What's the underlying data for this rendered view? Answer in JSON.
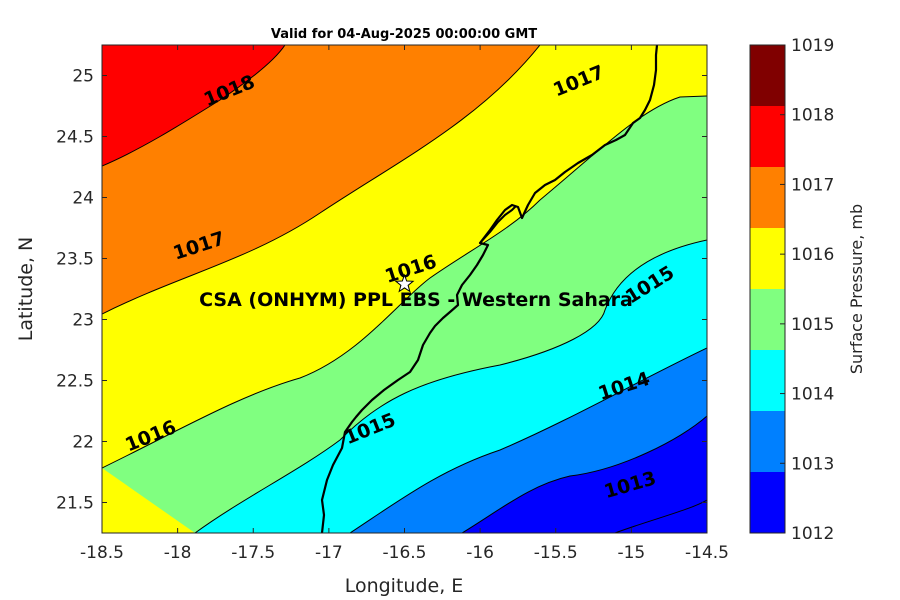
{
  "chart_data": {
    "type": "contour",
    "title": "Valid for 04-Aug-2025 00:00:00 GMT",
    "xlabel": "Longitude, E",
    "ylabel": "Latitude, N",
    "xlim": [
      -18.5,
      -14.5
    ],
    "ylim": [
      21.25,
      25.25
    ],
    "xticks": [
      "-18.5",
      "-18",
      "-17.5",
      "-17",
      "-16.5",
      "-16",
      "-15.5",
      "-15",
      "-14.5"
    ],
    "yticks": [
      "21.5",
      "22",
      "22.5",
      "23",
      "23.5",
      "24",
      "24.5",
      "25"
    ],
    "colorbar": {
      "label": "Surface Pressure, mb",
      "levels": [
        "1012",
        "1013",
        "1014",
        "1015",
        "1016",
        "1017",
        "1018",
        "1019"
      ],
      "colors": [
        "#0000ff",
        "#0080ff",
        "#00ffff",
        "#80ff80",
        "#ffff00",
        "#ff8000",
        "#ff0000",
        "#800000"
      ]
    },
    "contour_labels": [
      {
        "text": "1018",
        "lon": -17.66,
        "lat": 24.88
      },
      {
        "text": "1017",
        "lon": -15.35,
        "lat": 24.96
      },
      {
        "text": "1017",
        "lon": -17.86,
        "lat": 23.61
      },
      {
        "text": "1016",
        "lon": -16.46,
        "lat": 23.42
      },
      {
        "text": "1016",
        "lon": -18.18,
        "lat": 22.05
      },
      {
        "text": "1015",
        "lon": -14.88,
        "lat": 23.29
      },
      {
        "text": "1015",
        "lon": -16.73,
        "lat": 22.11
      },
      {
        "text": "1014",
        "lon": -15.05,
        "lat": 22.46
      },
      {
        "text": "1013",
        "lon": -15.01,
        "lat": 21.65
      }
    ],
    "site": {
      "label": "CSA (ONHYM) PPL EBS  - Western Sahara",
      "lon": -16.5,
      "lat": 23.29,
      "marker": "star"
    }
  }
}
